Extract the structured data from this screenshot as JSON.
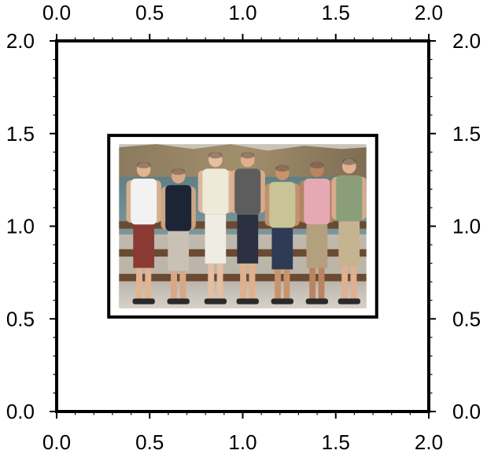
{
  "chart_data": {
    "type": "image-inset",
    "title": "",
    "xlabel": "",
    "ylabel": "",
    "xlim": [
      0.0,
      2.0
    ],
    "ylim": [
      0.0,
      2.0
    ],
    "grid": false,
    "legend": "none",
    "ticks": {
      "major": [
        0.0,
        0.5,
        1.0,
        1.5,
        2.0
      ],
      "major_labels": [
        "0.0",
        "0.5",
        "1.0",
        "1.5",
        "2.0"
      ],
      "minor_step": 0.1,
      "axes_labeled": [
        "top",
        "bottom",
        "left",
        "right"
      ]
    },
    "inset": {
      "content": "photo",
      "x": [
        0.28,
        1.72
      ],
      "y": [
        0.51,
        1.49
      ],
      "frame_color": "#000000",
      "mat_color": "#ffffff"
    }
  },
  "colors": {
    "axis": "#000000",
    "background": "#ffffff"
  }
}
